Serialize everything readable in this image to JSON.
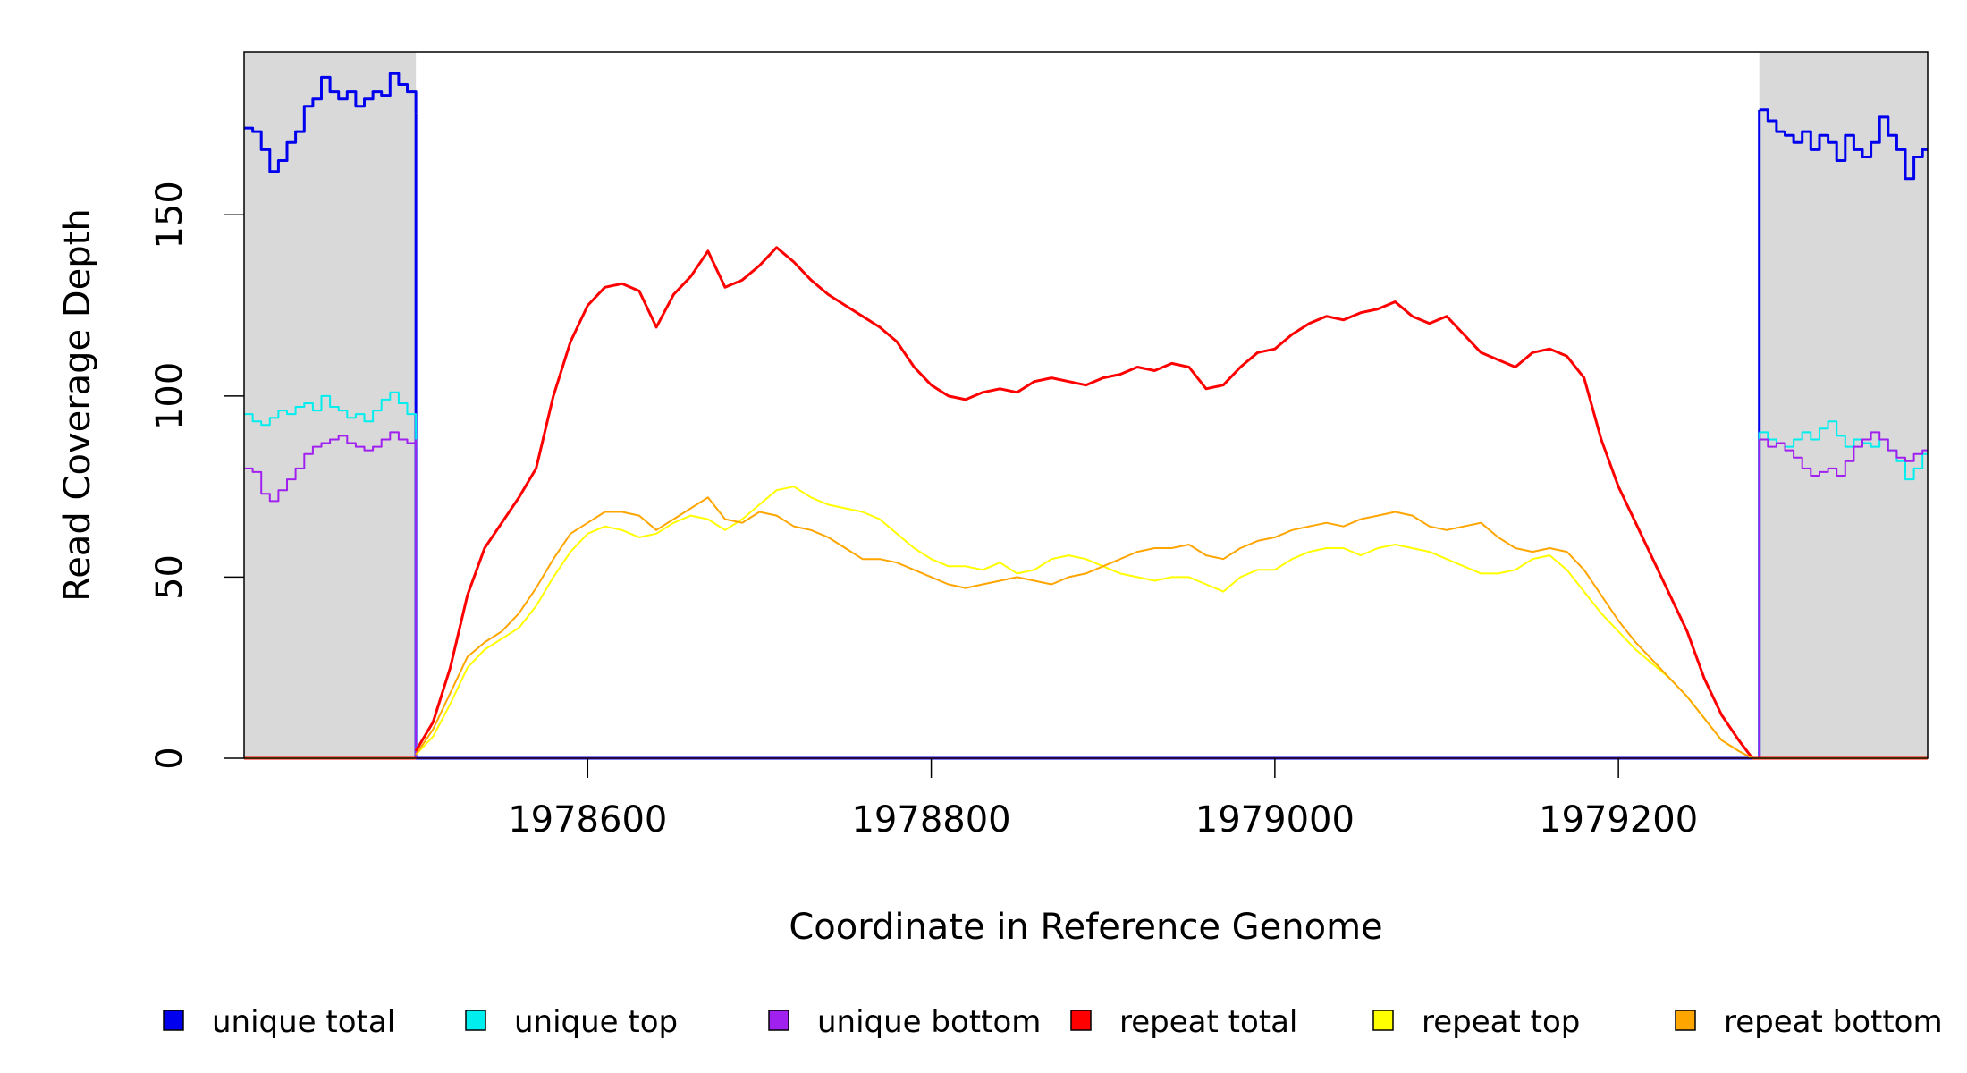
{
  "chart_data": {
    "type": "line",
    "title": "",
    "xlabel": "Coordinate in Reference Genome",
    "ylabel": "Read Coverage Depth",
    "xlim": [
      1978400,
      1979380
    ],
    "ylim": [
      0,
      195
    ],
    "xticks": [
      1978600,
      1978800,
      1979000,
      1979200
    ],
    "yticks": [
      0,
      50,
      100,
      150
    ],
    "shaded_regions": [
      {
        "from": 1978400,
        "to": 1978500,
        "color": "#d9d9d9"
      },
      {
        "from": 1979282,
        "to": 1979380,
        "color": "#d9d9d9"
      }
    ],
    "grid": false,
    "legend_position": "bottom",
    "series": [
      {
        "name": "unique total",
        "color": "#0000ee",
        "left": {
          "x": [
            1978400,
            1978405,
            1978410,
            1978415,
            1978420,
            1978425,
            1978430,
            1978435,
            1978440,
            1978445,
            1978450,
            1978455,
            1978460,
            1978465,
            1978470,
            1978475,
            1978480,
            1978485,
            1978490,
            1978495,
            1978500
          ],
          "y": [
            174,
            173,
            168,
            162,
            165,
            170,
            173,
            180,
            182,
            188,
            184,
            182,
            184,
            180,
            182,
            184,
            183,
            189,
            186,
            184,
            178
          ]
        },
        "right": {
          "x": [
            1979282,
            1979287,
            1979292,
            1979297,
            1979302,
            1979307,
            1979312,
            1979317,
            1979322,
            1979327,
            1979332,
            1979337,
            1979342,
            1979347,
            1979352,
            1979357,
            1979362,
            1979367,
            1979372,
            1979377,
            1979380
          ],
          "y": [
            179,
            176,
            173,
            172,
            170,
            173,
            168,
            172,
            170,
            165,
            172,
            168,
            166,
            170,
            177,
            172,
            168,
            160,
            166,
            168,
            168
          ]
        }
      },
      {
        "name": "unique top",
        "color": "#00eeee",
        "left": {
          "x": [
            1978400,
            1978405,
            1978410,
            1978415,
            1978420,
            1978425,
            1978430,
            1978435,
            1978440,
            1978445,
            1978450,
            1978455,
            1978460,
            1978465,
            1978470,
            1978475,
            1978480,
            1978485,
            1978490,
            1978495,
            1978500
          ],
          "y": [
            95,
            93,
            92,
            94,
            96,
            95,
            97,
            98,
            96,
            100,
            97,
            96,
            94,
            95,
            93,
            96,
            99,
            101,
            98,
            95,
            90
          ]
        },
        "right": {
          "x": [
            1979282,
            1979287,
            1979292,
            1979297,
            1979302,
            1979307,
            1979312,
            1979317,
            1979322,
            1979327,
            1979332,
            1979337,
            1979342,
            1979347,
            1979352,
            1979357,
            1979362,
            1979367,
            1979372,
            1979377,
            1979380
          ],
          "y": [
            90,
            88,
            87,
            86,
            88,
            90,
            88,
            91,
            93,
            89,
            86,
            88,
            87,
            86,
            88,
            85,
            82,
            77,
            80,
            84,
            84
          ]
        }
      },
      {
        "name": "unique bottom",
        "color": "#a020f0",
        "left": {
          "x": [
            1978400,
            1978405,
            1978410,
            1978415,
            1978420,
            1978425,
            1978430,
            1978435,
            1978440,
            1978445,
            1978450,
            1978455,
            1978460,
            1978465,
            1978470,
            1978475,
            1978480,
            1978485,
            1978490,
            1978495,
            1978500
          ],
          "y": [
            80,
            79,
            73,
            71,
            74,
            77,
            80,
            84,
            86,
            87,
            88,
            89,
            87,
            86,
            85,
            86,
            88,
            90,
            88,
            87,
            88
          ]
        },
        "right": {
          "x": [
            1979282,
            1979287,
            1979292,
            1979297,
            1979302,
            1979307,
            1979312,
            1979317,
            1979322,
            1979327,
            1979332,
            1979337,
            1979342,
            1979347,
            1979352,
            1979357,
            1979362,
            1979367,
            1979372,
            1979377,
            1979380
          ],
          "y": [
            88,
            86,
            87,
            85,
            83,
            80,
            78,
            79,
            80,
            78,
            82,
            86,
            88,
            90,
            88,
            85,
            83,
            82,
            84,
            85,
            85
          ]
        }
      },
      {
        "name": "repeat total",
        "color": "#ff0000",
        "x": [
          1978500,
          1978510,
          1978520,
          1978530,
          1978540,
          1978550,
          1978560,
          1978570,
          1978580,
          1978590,
          1978600,
          1978610,
          1978620,
          1978630,
          1978640,
          1978650,
          1978660,
          1978670,
          1978680,
          1978690,
          1978700,
          1978710,
          1978720,
          1978730,
          1978740,
          1978750,
          1978760,
          1978770,
          1978780,
          1978790,
          1978800,
          1978810,
          1978820,
          1978830,
          1978840,
          1978850,
          1978860,
          1978870,
          1978880,
          1978890,
          1978900,
          1978910,
          1978920,
          1978930,
          1978940,
          1978950,
          1978960,
          1978970,
          1978980,
          1978990,
          1979000,
          1979010,
          1979020,
          1979030,
          1979040,
          1979050,
          1979060,
          1979070,
          1979080,
          1979090,
          1979100,
          1979110,
          1979120,
          1979130,
          1979140,
          1979150,
          1979160,
          1979170,
          1979180,
          1979190,
          1979200,
          1979210,
          1979220,
          1979230,
          1979240,
          1979250,
          1979260,
          1979270,
          1979278
        ],
        "y": [
          2,
          10,
          25,
          45,
          58,
          65,
          72,
          80,
          100,
          115,
          125,
          130,
          131,
          129,
          119,
          128,
          133,
          140,
          130,
          132,
          136,
          141,
          137,
          132,
          128,
          125,
          122,
          119,
          115,
          108,
          103,
          100,
          99,
          101,
          102,
          101,
          104,
          105,
          104,
          103,
          105,
          106,
          108,
          107,
          109,
          108,
          102,
          103,
          108,
          112,
          113,
          117,
          120,
          122,
          121,
          123,
          124,
          126,
          122,
          120,
          122,
          117,
          112,
          110,
          108,
          112,
          113,
          111,
          105,
          88,
          75,
          65,
          55,
          45,
          35,
          22,
          12,
          5,
          0
        ]
      },
      {
        "name": "repeat top",
        "color": "#ffff00",
        "x": [
          1978500,
          1978510,
          1978520,
          1978530,
          1978540,
          1978550,
          1978560,
          1978570,
          1978580,
          1978590,
          1978600,
          1978610,
          1978620,
          1978630,
          1978640,
          1978650,
          1978660,
          1978670,
          1978680,
          1978690,
          1978700,
          1978710,
          1978720,
          1978730,
          1978740,
          1978750,
          1978760,
          1978770,
          1978780,
          1978790,
          1978800,
          1978810,
          1978820,
          1978830,
          1978840,
          1978850,
          1978860,
          1978870,
          1978880,
          1978890,
          1978900,
          1978910,
          1978920,
          1978930,
          1978940,
          1978950,
          1978960,
          1978970,
          1978980,
          1978990,
          1979000,
          1979010,
          1979020,
          1979030,
          1979040,
          1979050,
          1979060,
          1979070,
          1979080,
          1979090,
          1979100,
          1979110,
          1979120,
          1979130,
          1979140,
          1979150,
          1979160,
          1979170,
          1979180,
          1979190,
          1979200,
          1979210,
          1979220,
          1979230,
          1979240,
          1979250,
          1979260,
          1979270,
          1979278
        ],
        "y": [
          1,
          6,
          15,
          25,
          30,
          33,
          36,
          42,
          50,
          57,
          62,
          64,
          63,
          61,
          62,
          65,
          67,
          66,
          63,
          66,
          70,
          74,
          75,
          72,
          70,
          69,
          68,
          66,
          62,
          58,
          55,
          53,
          53,
          52,
          54,
          51,
          52,
          55,
          56,
          55,
          53,
          51,
          50,
          49,
          50,
          50,
          48,
          46,
          50,
          52,
          52,
          55,
          57,
          58,
          58,
          56,
          58,
          59,
          58,
          57,
          55,
          53,
          51,
          51,
          52,
          55,
          56,
          52,
          46,
          40,
          35,
          30,
          26,
          22,
          17,
          11,
          5,
          2,
          0
        ]
      },
      {
        "name": "repeat bottom",
        "color": "#ffa500",
        "x": [
          1978500,
          1978510,
          1978520,
          1978530,
          1978540,
          1978550,
          1978560,
          1978570,
          1978580,
          1978590,
          1978600,
          1978610,
          1978620,
          1978630,
          1978640,
          1978650,
          1978660,
          1978670,
          1978680,
          1978690,
          1978700,
          1978710,
          1978720,
          1978730,
          1978740,
          1978750,
          1978760,
          1978770,
          1978780,
          1978790,
          1978800,
          1978810,
          1978820,
          1978830,
          1978840,
          1978850,
          1978860,
          1978870,
          1978880,
          1978890,
          1978900,
          1978910,
          1978920,
          1978930,
          1978940,
          1978950,
          1978960,
          1978970,
          1978980,
          1978990,
          1979000,
          1979010,
          1979020,
          1979030,
          1979040,
          1979050,
          1979060,
          1979070,
          1979080,
          1979090,
          1979100,
          1979110,
          1979120,
          1979130,
          1979140,
          1979150,
          1979160,
          1979170,
          1979180,
          1979190,
          1979200,
          1979210,
          1979220,
          1979230,
          1979240,
          1979250,
          1979260,
          1979270,
          1979278
        ],
        "y": [
          1,
          8,
          18,
          28,
          32,
          35,
          40,
          47,
          55,
          62,
          65,
          68,
          68,
          67,
          63,
          66,
          69,
          72,
          66,
          65,
          68,
          67,
          64,
          63,
          61,
          58,
          55,
          55,
          54,
          52,
          50,
          48,
          47,
          48,
          49,
          50,
          49,
          48,
          50,
          51,
          53,
          55,
          57,
          58,
          58,
          59,
          56,
          55,
          58,
          60,
          61,
          63,
          64,
          65,
          64,
          66,
          67,
          68,
          67,
          64,
          63,
          64,
          65,
          61,
          58,
          57,
          58,
          57,
          52,
          45,
          38,
          32,
          27,
          22,
          17,
          11,
          5,
          2,
          0
        ]
      }
    ]
  }
}
